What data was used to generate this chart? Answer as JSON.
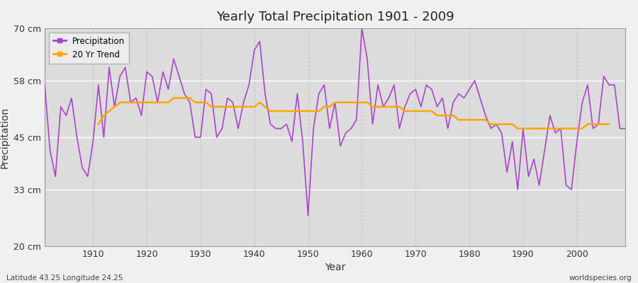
{
  "title": "Yearly Total Precipitation 1901 - 2009",
  "xlabel": "Year",
  "ylabel": "Precipitation",
  "subtitle": "Latitude 43.25 Longitude 24.25",
  "credit": "worldspecies.org",
  "ylim": [
    20,
    70
  ],
  "yticks": [
    20,
    33,
    45,
    58,
    70
  ],
  "ytick_labels": [
    "20 cm",
    "33 cm",
    "45 cm",
    "58 cm",
    "70 cm"
  ],
  "xlim": [
    1901,
    2009
  ],
  "precip_color": "#AA44CC",
  "trend_color": "#FFA500",
  "bg_color": "#F0F0F0",
  "plot_bg_color": "#DCDCDC",
  "grid_color_h": "#FFFFFF",
  "grid_color_v": "#C8C8C8",
  "years": [
    1901,
    1902,
    1903,
    1904,
    1905,
    1906,
    1907,
    1908,
    1909,
    1910,
    1911,
    1912,
    1913,
    1914,
    1915,
    1916,
    1917,
    1918,
    1919,
    1920,
    1921,
    1922,
    1923,
    1924,
    1925,
    1926,
    1927,
    1928,
    1929,
    1930,
    1931,
    1932,
    1933,
    1934,
    1935,
    1936,
    1937,
    1938,
    1939,
    1940,
    1941,
    1942,
    1943,
    1944,
    1945,
    1946,
    1947,
    1948,
    1949,
    1950,
    1951,
    1952,
    1953,
    1954,
    1955,
    1956,
    1957,
    1958,
    1959,
    1960,
    1961,
    1962,
    1963,
    1964,
    1965,
    1966,
    1967,
    1968,
    1969,
    1970,
    1971,
    1972,
    1973,
    1974,
    1975,
    1976,
    1977,
    1978,
    1979,
    1980,
    1981,
    1982,
    1983,
    1984,
    1985,
    1986,
    1987,
    1988,
    1989,
    1990,
    1991,
    1992,
    1993,
    1994,
    1995,
    1996,
    1997,
    1998,
    1999,
    2000,
    2001,
    2002,
    2003,
    2004,
    2005,
    2006,
    2007,
    2008,
    2009
  ],
  "precipitation": [
    57,
    42,
    36,
    52,
    50,
    54,
    45,
    38,
    36,
    44,
    57,
    45,
    61,
    52,
    59,
    61,
    53,
    54,
    50,
    60,
    59,
    53,
    60,
    56,
    63,
    59,
    55,
    53,
    45,
    45,
    56,
    55,
    45,
    47,
    54,
    53,
    47,
    53,
    57,
    65,
    67,
    55,
    48,
    47,
    47,
    48,
    44,
    55,
    44,
    27,
    47,
    55,
    57,
    47,
    53,
    43,
    46,
    47,
    49,
    70,
    63,
    48,
    57,
    52,
    54,
    57,
    47,
    52,
    55,
    56,
    52,
    57,
    56,
    52,
    54,
    47,
    53,
    55,
    54,
    56,
    58,
    54,
    50,
    47,
    48,
    46,
    37,
    44,
    33,
    47,
    36,
    40,
    34,
    42,
    50,
    46,
    47,
    34,
    33,
    44,
    53,
    57,
    47,
    48,
    59,
    57,
    57,
    47,
    47
  ],
  "trend": [
    null,
    null,
    null,
    null,
    null,
    null,
    null,
    null,
    null,
    null,
    48,
    50,
    51,
    52,
    53,
    53,
    53,
    53,
    53,
    53,
    53,
    53,
    53,
    53,
    54,
    54,
    54,
    54,
    53,
    53,
    53,
    52,
    52,
    52,
    52,
    52,
    52,
    52,
    52,
    52,
    53,
    52,
    51,
    51,
    51,
    51,
    51,
    51,
    51,
    51,
    51,
    51,
    52,
    52,
    53,
    53,
    53,
    53,
    53,
    53,
    53,
    52,
    52,
    52,
    52,
    52,
    52,
    51,
    51,
    51,
    51,
    51,
    51,
    50,
    50,
    50,
    50,
    49,
    49,
    49,
    49,
    49,
    49,
    48,
    48,
    48,
    48,
    48,
    47,
    47,
    47,
    47,
    47,
    47,
    47,
    47,
    47,
    47,
    47,
    47,
    47,
    48,
    48,
    48,
    48,
    48,
    null,
    null,
    null
  ]
}
